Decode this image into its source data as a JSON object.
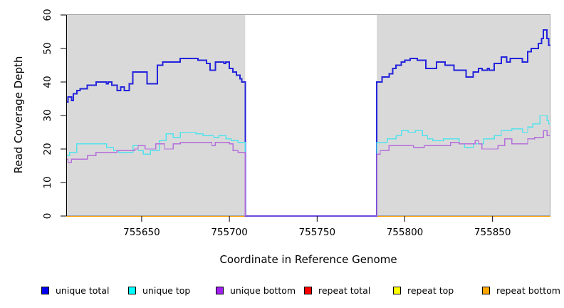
{
  "chart_data": {
    "type": "line",
    "subtype": "step-coverage-plot",
    "title": "",
    "xlabel": "Coordinate in Reference Genome",
    "ylabel": "Read Coverage Depth",
    "xlim": [
      755607,
      755883
    ],
    "ylim": [
      0,
      60
    ],
    "x_ticks": [
      "755650",
      "755700",
      "755750",
      "755800",
      "755850"
    ],
    "x_tick_values": [
      755650,
      755700,
      755750,
      755800,
      755850
    ],
    "y_ticks": [
      "0",
      "10",
      "20",
      "30",
      "40",
      "50",
      "60"
    ],
    "y_tick_values": [
      0,
      10,
      20,
      30,
      40,
      50,
      60
    ],
    "grid": false,
    "plot_background": "#D9D9D9",
    "plot_border_color": "#A3A3A3",
    "masked_gap": {
      "start": 755709,
      "end": 755784,
      "fill": "#FFFFFF"
    },
    "legend_position": "bottom",
    "series": [
      {
        "name": "repeat total",
        "id": "repeat-total",
        "legend_color": "#FF0000",
        "line_color": "#DD0000",
        "line_width": 1.2,
        "draw_layer": "under-mask",
        "values": [
          [
            755607,
            0
          ],
          [
            755883,
            0
          ]
        ]
      },
      {
        "name": "repeat top",
        "id": "repeat-top",
        "legend_color": "#FFFF00",
        "line_color": "#F2E500",
        "line_width": 1.2,
        "draw_layer": "under-mask",
        "values": [
          [
            755607,
            0
          ],
          [
            755883,
            0
          ]
        ]
      },
      {
        "name": "repeat bottom",
        "id": "repeat-bottom",
        "legend_color": "#FFA500",
        "line_color": "#FF9D00",
        "line_width": 2,
        "draw_layer": "under-mask",
        "values": [
          [
            755607,
            0
          ],
          [
            755883,
            0
          ]
        ]
      },
      {
        "name": "unique total",
        "id": "unique-total",
        "legend_color": "#0000EE",
        "line_color": "#2323DC",
        "line_width": 2,
        "draw_layer": "over-mask",
        "values": [
          [
            755607,
            34
          ],
          [
            755608,
            35.5
          ],
          [
            755610,
            34.5
          ],
          [
            755611,
            36.5
          ],
          [
            755613,
            37.5
          ],
          [
            755615,
            38
          ],
          [
            755619,
            39
          ],
          [
            755624,
            40
          ],
          [
            755630,
            39.5
          ],
          [
            755631,
            40
          ],
          [
            755633,
            39
          ],
          [
            755636,
            37.5
          ],
          [
            755638,
            38.5
          ],
          [
            755640,
            37.5
          ],
          [
            755643,
            39.5
          ],
          [
            755645,
            43
          ],
          [
            755653,
            39.5
          ],
          [
            755659,
            45
          ],
          [
            755662,
            46
          ],
          [
            755672,
            47
          ],
          [
            755682,
            46.5
          ],
          [
            755687,
            45.5
          ],
          [
            755689,
            43.5
          ],
          [
            755692,
            46
          ],
          [
            755697,
            45.5
          ],
          [
            755698,
            46
          ],
          [
            755700,
            44
          ],
          [
            755702,
            43
          ],
          [
            755704,
            42
          ],
          [
            755706,
            41
          ],
          [
            755707,
            40
          ],
          [
            755709,
            0
          ],
          [
            755784,
            40
          ],
          [
            755787,
            41.5
          ],
          [
            755791,
            42.5
          ],
          [
            755793,
            44
          ],
          [
            755795,
            45
          ],
          [
            755798,
            46
          ],
          [
            755800,
            46.5
          ],
          [
            755803,
            47
          ],
          [
            755807,
            46.5
          ],
          [
            755812,
            44
          ],
          [
            755818,
            46
          ],
          [
            755823,
            45
          ],
          [
            755828,
            43.5
          ],
          [
            755835,
            41.5
          ],
          [
            755839,
            43
          ],
          [
            755842,
            44
          ],
          [
            755844,
            43.5
          ],
          [
            755847,
            44
          ],
          [
            755848,
            43.5
          ],
          [
            755851,
            45.5
          ],
          [
            755855,
            47.5
          ],
          [
            755858,
            46
          ],
          [
            755860,
            47
          ],
          [
            755867,
            46
          ],
          [
            755870,
            49
          ],
          [
            755872,
            50
          ],
          [
            755876,
            51.5
          ],
          [
            755878,
            53
          ],
          [
            755879,
            55.5
          ],
          [
            755881,
            53
          ],
          [
            755882,
            51
          ],
          [
            755883,
            51
          ]
        ]
      },
      {
        "name": "unique top",
        "id": "unique-top",
        "legend_color": "#00FFFF",
        "line_color": "#53E2EC",
        "line_width": 1.4,
        "draw_layer": "over-mask",
        "values": [
          [
            755607,
            18
          ],
          [
            755609,
            19
          ],
          [
            755613,
            21.5
          ],
          [
            755630,
            20.5
          ],
          [
            755634,
            19.5
          ],
          [
            755637,
            19
          ],
          [
            755645,
            21
          ],
          [
            755648,
            19.5
          ],
          [
            755651,
            18.5
          ],
          [
            755655,
            19.5
          ],
          [
            755660,
            22.5
          ],
          [
            755664,
            24.5
          ],
          [
            755668,
            23.5
          ],
          [
            755672,
            25
          ],
          [
            755681,
            24.5
          ],
          [
            755685,
            24
          ],
          [
            755691,
            23.5
          ],
          [
            755694,
            24
          ],
          [
            755698,
            23
          ],
          [
            755701,
            22.5
          ],
          [
            755705,
            22
          ],
          [
            755709,
            0
          ],
          [
            755784,
            22
          ],
          [
            755790,
            23
          ],
          [
            755795,
            24
          ],
          [
            755798,
            25.5
          ],
          [
            755802,
            25
          ],
          [
            755806,
            25.5
          ],
          [
            755810,
            24
          ],
          [
            755813,
            23
          ],
          [
            755816,
            22.5
          ],
          [
            755822,
            23
          ],
          [
            755831,
            21.5
          ],
          [
            755834,
            20.5
          ],
          [
            755839,
            21.5
          ],
          [
            755845,
            23
          ],
          [
            755851,
            24
          ],
          [
            755855,
            25.5
          ],
          [
            755861,
            26
          ],
          [
            755867,
            25
          ],
          [
            755870,
            26.5
          ],
          [
            755873,
            27.5
          ],
          [
            755877,
            30
          ],
          [
            755881,
            28.5
          ],
          [
            755882,
            27.5
          ],
          [
            755883,
            27.5
          ]
        ]
      },
      {
        "name": "unique bottom",
        "id": "unique-bottom",
        "legend_color": "#A020F0",
        "line_color": "#B570DB",
        "line_width": 1.4,
        "draw_layer": "over-mask",
        "values": [
          [
            755607,
            17
          ],
          [
            755608,
            16
          ],
          [
            755610,
            17
          ],
          [
            755619,
            18
          ],
          [
            755624,
            19
          ],
          [
            755636,
            19.5
          ],
          [
            755646,
            20
          ],
          [
            755648,
            21
          ],
          [
            755652,
            20
          ],
          [
            755658,
            21.5
          ],
          [
            755663,
            20
          ],
          [
            755668,
            21.5
          ],
          [
            755672,
            22
          ],
          [
            755690,
            21
          ],
          [
            755692,
            22
          ],
          [
            755700,
            21.5
          ],
          [
            755702,
            19.5
          ],
          [
            755705,
            19
          ],
          [
            755709,
            0
          ],
          [
            755784,
            18.5
          ],
          [
            755786,
            19.5
          ],
          [
            755791,
            21
          ],
          [
            755805,
            20.5
          ],
          [
            755811,
            21
          ],
          [
            755826,
            22
          ],
          [
            755831,
            21.5
          ],
          [
            755840,
            22.5
          ],
          [
            755842,
            21.5
          ],
          [
            755844,
            20
          ],
          [
            755853,
            21
          ],
          [
            755857,
            23
          ],
          [
            755861,
            21.5
          ],
          [
            755870,
            23
          ],
          [
            755874,
            23.5
          ],
          [
            755879,
            25.5
          ],
          [
            755881,
            24
          ],
          [
            755883,
            24
          ]
        ]
      }
    ],
    "legend": [
      {
        "label": "unique total",
        "color": "#0000EE"
      },
      {
        "label": "unique top",
        "color": "#00FFFF"
      },
      {
        "label": "unique bottom",
        "color": "#A020F0"
      },
      {
        "label": "repeat total",
        "color": "#FF0000"
      },
      {
        "label": "repeat top",
        "color": "#FFFF00"
      },
      {
        "label": "repeat bottom",
        "color": "#FFA500"
      }
    ]
  }
}
